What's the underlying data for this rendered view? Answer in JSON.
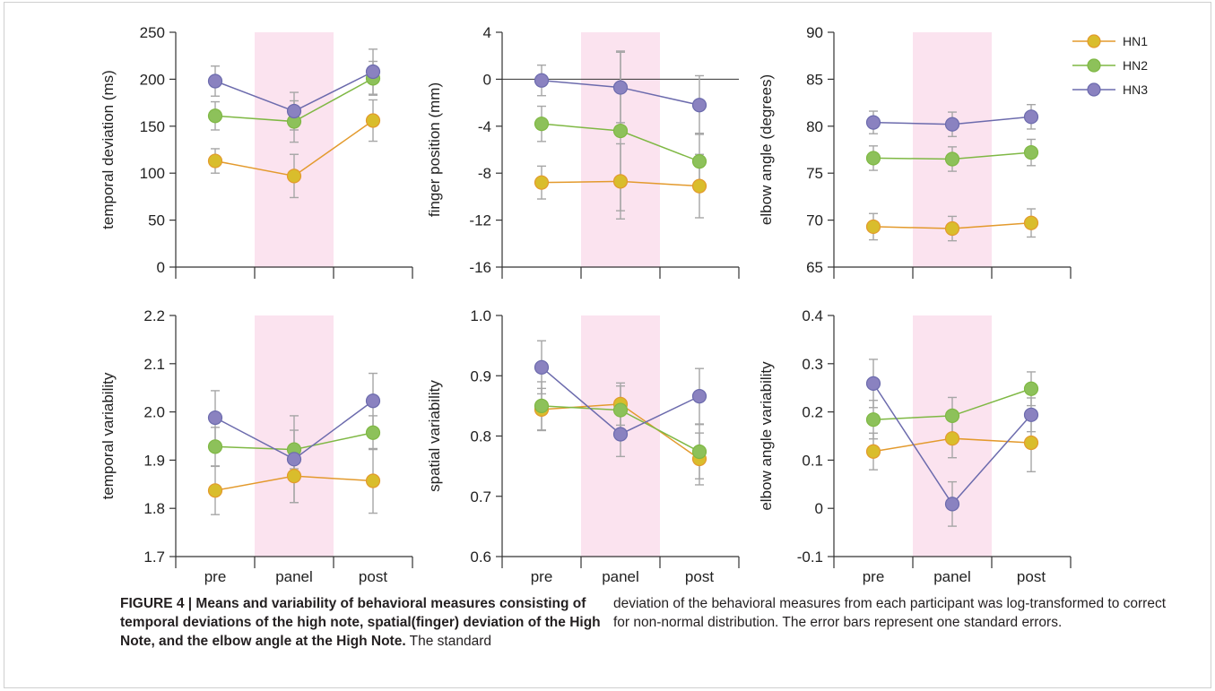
{
  "legend": {
    "items": [
      "HN1",
      "HN2",
      "HN3"
    ]
  },
  "colors": {
    "HN1": "#e39a2d",
    "HN2": "#7fb844",
    "HN3": "#6c6bad",
    "HN1_fill": "#d9bd2c",
    "HN2_fill": "#8dc15a",
    "HN3_fill": "#8a82c0",
    "highlight": "#fbe3ef",
    "errorbar": "#a6a6a6"
  },
  "chart_data": [
    {
      "type": "line",
      "ylabel": "temporal deviation (ms)",
      "categories": [
        "pre",
        "panel",
        "post"
      ],
      "ylim": [
        0,
        250
      ],
      "yticks": [
        "250",
        "200",
        "150",
        "100",
        "50",
        "0"
      ],
      "show_xticklabels": false,
      "highlight_category": "panel",
      "series": [
        {
          "name": "HN1",
          "values": [
            113,
            97,
            156
          ],
          "errors": [
            13,
            23,
            22
          ]
        },
        {
          "name": "HN2",
          "values": [
            161,
            155,
            201
          ],
          "errors": [
            15,
            22,
            18
          ]
        },
        {
          "name": "HN3",
          "values": [
            198,
            166,
            208
          ],
          "errors": [
            16,
            20,
            24
          ]
        }
      ]
    },
    {
      "type": "line",
      "ylabel": "finger position (mm)",
      "categories": [
        "pre",
        "panel",
        "post"
      ],
      "ylim": [
        -16,
        4
      ],
      "yticks": [
        "4",
        "0",
        "-4",
        "-8",
        "-12",
        "-16"
      ],
      "zero_line": true,
      "show_xticklabels": false,
      "highlight_category": "panel",
      "series": [
        {
          "name": "HN1",
          "values": [
            -8.8,
            -8.7,
            -9.1
          ],
          "errors": [
            1.4,
            3.2,
            2.7
          ]
        },
        {
          "name": "HN2",
          "values": [
            -3.8,
            -4.4,
            -7.0
          ],
          "errors": [
            1.5,
            6.8,
            2.4
          ]
        },
        {
          "name": "HN3",
          "values": [
            -0.1,
            -0.7,
            -2.2
          ],
          "errors": [
            1.3,
            3.0,
            2.5
          ]
        }
      ]
    },
    {
      "type": "line",
      "ylabel": "elbow angle (degrees)",
      "categories": [
        "pre",
        "panel",
        "post"
      ],
      "ylim": [
        65,
        90
      ],
      "yticks": [
        "90",
        "85",
        "80",
        "75",
        "70",
        "65"
      ],
      "show_xticklabels": false,
      "highlight_category": "panel",
      "legend": "top-right",
      "series": [
        {
          "name": "HN1",
          "values": [
            69.3,
            69.1,
            69.7
          ],
          "errors": [
            1.4,
            1.3,
            1.5
          ]
        },
        {
          "name": "HN2",
          "values": [
            76.6,
            76.5,
            77.2
          ],
          "errors": [
            1.3,
            1.3,
            1.4
          ]
        },
        {
          "name": "HN3",
          "values": [
            80.4,
            80.2,
            81.0
          ],
          "errors": [
            1.2,
            1.3,
            1.3
          ]
        }
      ]
    },
    {
      "type": "line",
      "ylabel": "temporal variability",
      "categories": [
        "pre",
        "panel",
        "post"
      ],
      "ylim": [
        1.7,
        2.2
      ],
      "yticks": [
        "2.2",
        "2.1",
        "2.0",
        "1.9",
        "1.8",
        "1.7"
      ],
      "show_xticklabels": true,
      "highlight_category": "panel",
      "series": [
        {
          "name": "HN1",
          "values": [
            1.837,
            1.867,
            1.857
          ],
          "errors": [
            0.05,
            0.055,
            0.067
          ]
        },
        {
          "name": "HN2",
          "values": [
            1.928,
            1.922,
            1.957
          ],
          "errors": [
            0.04,
            0.04,
            0.035
          ]
        },
        {
          "name": "HN3",
          "values": [
            1.988,
            1.902,
            2.023
          ],
          "errors": [
            0.056,
            0.09,
            0.057
          ]
        }
      ]
    },
    {
      "type": "line",
      "ylabel": "spatial variability",
      "categories": [
        "pre",
        "panel",
        "post"
      ],
      "ylim": [
        0.6,
        1.0
      ],
      "yticks": [
        "1.0",
        "0.9",
        "0.8",
        "0.7",
        "0.6"
      ],
      "show_xticklabels": true,
      "highlight_category": "panel",
      "series": [
        {
          "name": "HN1",
          "values": [
            0.844,
            0.853,
            0.762
          ],
          "errors": [
            0.035,
            0.035,
            0.043
          ]
        },
        {
          "name": "HN2",
          "values": [
            0.85,
            0.843,
            0.774
          ],
          "errors": [
            0.04,
            0.04,
            0.045
          ]
        },
        {
          "name": "HN3",
          "values": [
            0.914,
            0.803,
            0.866
          ],
          "errors": [
            0.044,
            0.037,
            0.046
          ]
        }
      ]
    },
    {
      "type": "line",
      "ylabel": "elbow angle variability",
      "categories": [
        "pre",
        "panel",
        "post"
      ],
      "ylim": [
        -0.1,
        0.4
      ],
      "yticks": [
        "0.4",
        "0.3",
        "0.2",
        "0.1",
        "0",
        "-0.1"
      ],
      "show_xticklabels": true,
      "highlight_category": "panel",
      "series": [
        {
          "name": "HN1",
          "values": [
            0.118,
            0.145,
            0.136
          ],
          "errors": [
            0.038,
            0.04,
            0.06
          ]
        },
        {
          "name": "HN2",
          "values": [
            0.184,
            0.192,
            0.248
          ],
          "errors": [
            0.04,
            0.038,
            0.035
          ]
        },
        {
          "name": "HN3",
          "values": [
            0.259,
            0.009,
            0.194
          ],
          "errors": [
            0.05,
            0.046,
            0.035
          ]
        }
      ]
    }
  ],
  "caption": {
    "label": "FIGURE 4 | Means and variability of behavioral measures consisting of temporal deviations of the high note, spatial(finger) deviation of the High Note, and the elbow angle at the High Note.",
    "text_left": "The standard",
    "text_right": "deviation of the behavioral measures from each participant was log-transformed to correct for non-normal distribution. The error bars represent one standard errors."
  }
}
